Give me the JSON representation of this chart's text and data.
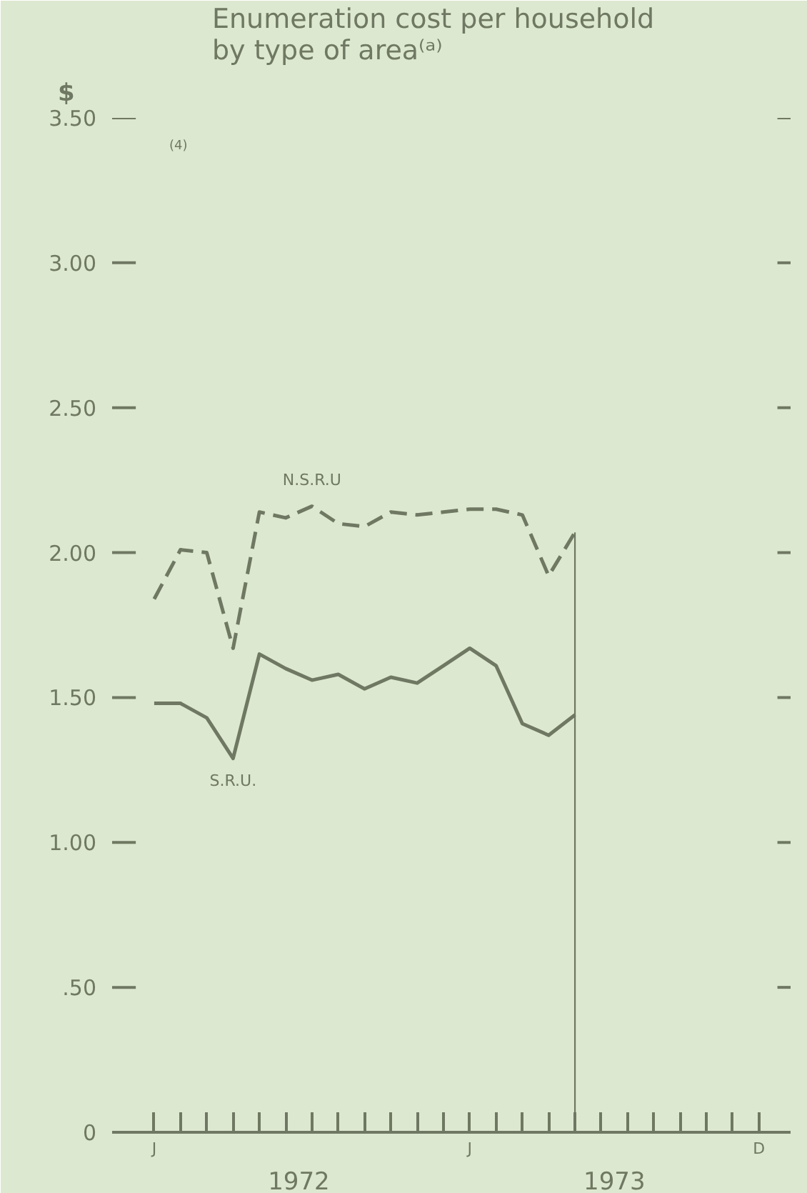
{
  "chart_data": {
    "type": "line",
    "title": "Enumeration cost per household\nby type of area⁽ᵃ⁾",
    "ylabel": "$",
    "annotations": [
      "(4)",
      "1972",
      "1973"
    ],
    "categories": [
      "J",
      null,
      null,
      null,
      null,
      null,
      null,
      null,
      null,
      null,
      null,
      null,
      "J",
      null,
      null,
      null,
      null,
      null,
      null,
      null,
      null,
      null,
      null,
      "D"
    ],
    "series": [
      {
        "name": "N.S.R.U",
        "color": "#6f7862",
        "line_style": "dashed",
        "values": [
          1.84,
          2.01,
          2.0,
          1.67,
          2.14,
          2.12,
          2.16,
          2.1,
          2.09,
          2.14,
          2.13,
          2.14,
          2.15,
          2.15,
          2.13,
          1.92,
          2.07,
          null,
          null,
          null,
          null,
          null,
          null,
          null
        ]
      },
      {
        "name": "S.R.U.",
        "color": "#6f7862",
        "line_style": "solid",
        "values": [
          1.48,
          1.48,
          1.43,
          1.29,
          1.65,
          1.6,
          1.56,
          1.58,
          1.53,
          1.57,
          1.55,
          1.61,
          1.67,
          1.61,
          1.41,
          1.37,
          1.44,
          null,
          null,
          null,
          null,
          null,
          null,
          null
        ]
      },
      {
        "type": "bar",
        "color": "#6f7862",
        "values": [
          null,
          null,
          null,
          null,
          null,
          null,
          null,
          null,
          null,
          null,
          null,
          null,
          null,
          null,
          null,
          null,
          2.07,
          null,
          null,
          null,
          null,
          null,
          null,
          null
        ]
      }
    ],
    "ylim": [
      0,
      3.5
    ],
    "yticks": [
      0,
      {
        "value": 0.5,
        "label": ".50"
      },
      {
        "value": 1.0,
        "label": "1.00"
      },
      {
        "value": 1.5,
        "label": "1.50"
      },
      {
        "value": 2.0,
        "label": "2.00"
      },
      {
        "value": 2.5,
        "label": "2.50"
      },
      {
        "value": 3.0,
        "label": "3.00"
      },
      {
        "value": 3.5,
        "label": "3.50"
      }
    ]
  }
}
